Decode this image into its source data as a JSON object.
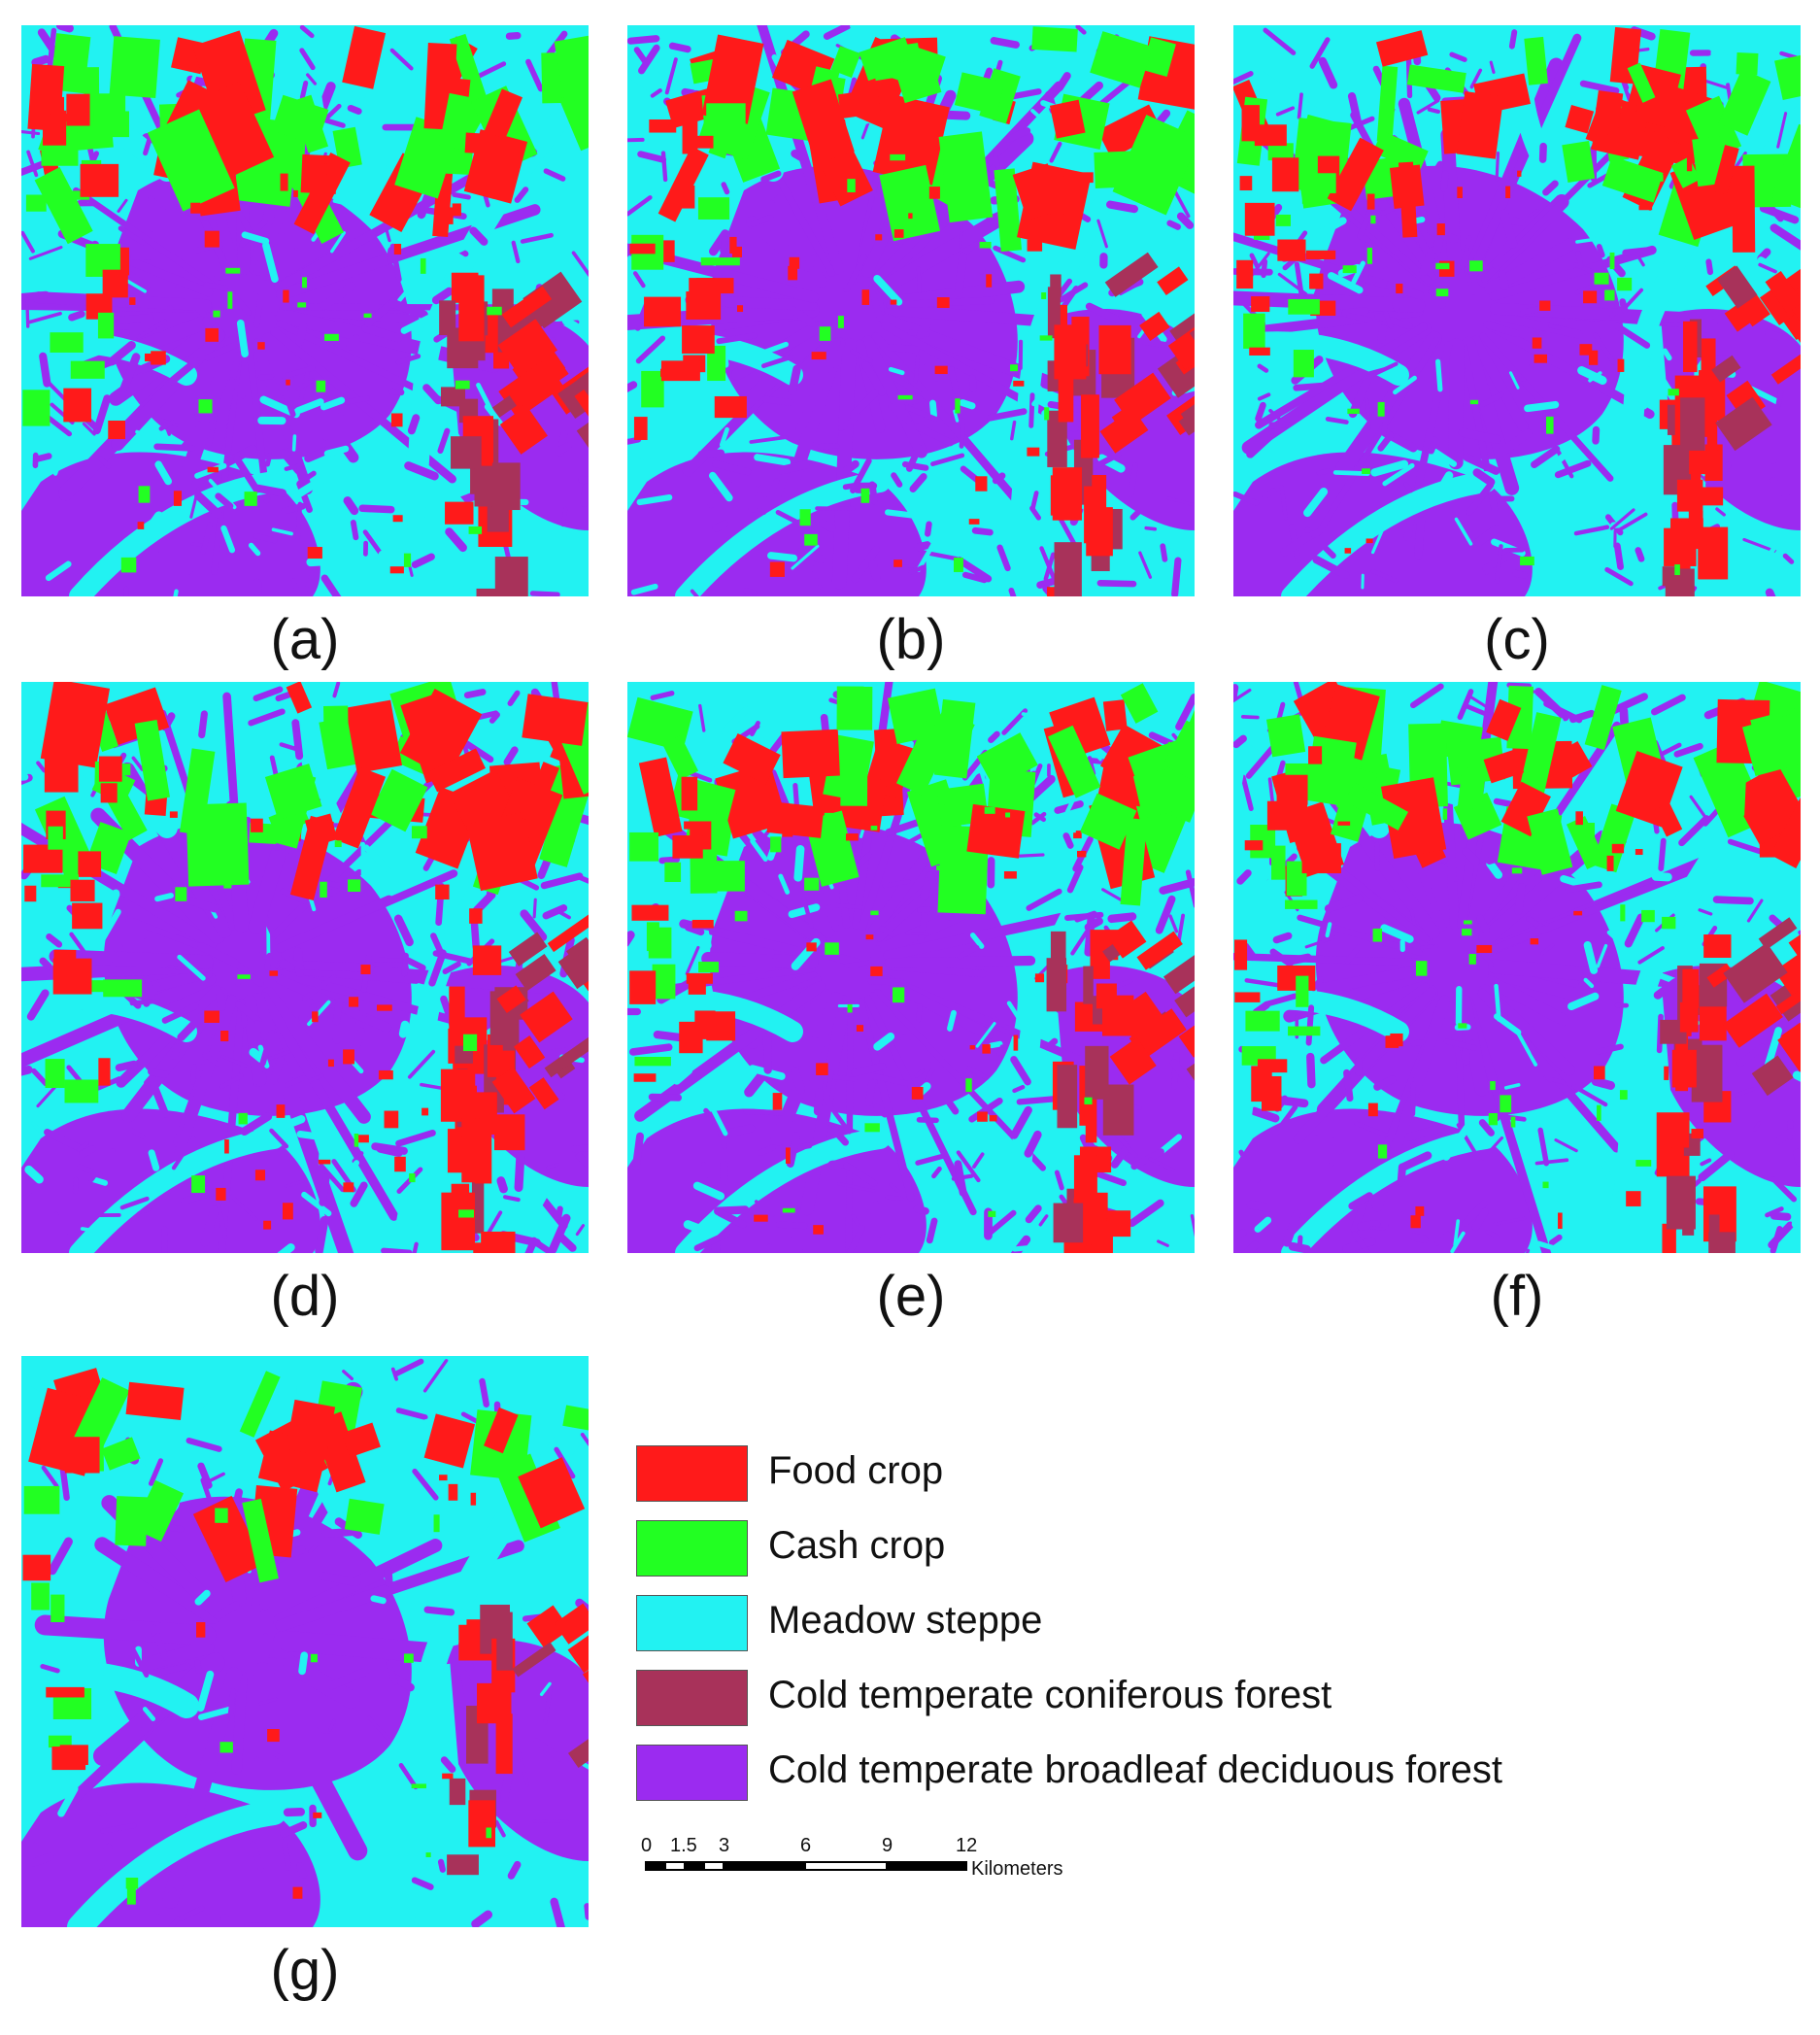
{
  "figure": {
    "panels": [
      {
        "id": "a",
        "label": "(a)"
      },
      {
        "id": "b",
        "label": "(b)"
      },
      {
        "id": "c",
        "label": "(c)"
      },
      {
        "id": "d",
        "label": "(d)"
      },
      {
        "id": "e",
        "label": "(e)"
      },
      {
        "id": "f",
        "label": "(f)"
      },
      {
        "id": "g",
        "label": "(g)"
      }
    ]
  },
  "legend": {
    "items": [
      {
        "label": "Food crop",
        "color": "#ff1a1a"
      },
      {
        "label": "Cash crop",
        "color": "#22ff22"
      },
      {
        "label": "Meadow steppe",
        "color": "#22f2f2"
      },
      {
        "label": "Cold temperate coniferous forest",
        "color": "#a8325a"
      },
      {
        "label": "Cold temperate broadleaf deciduous forest",
        "color": "#9b2bf0"
      }
    ]
  },
  "scalebar": {
    "ticks": [
      "0",
      "1.5",
      "3",
      "6",
      "9",
      "12"
    ],
    "unit": "Kilometers"
  }
}
